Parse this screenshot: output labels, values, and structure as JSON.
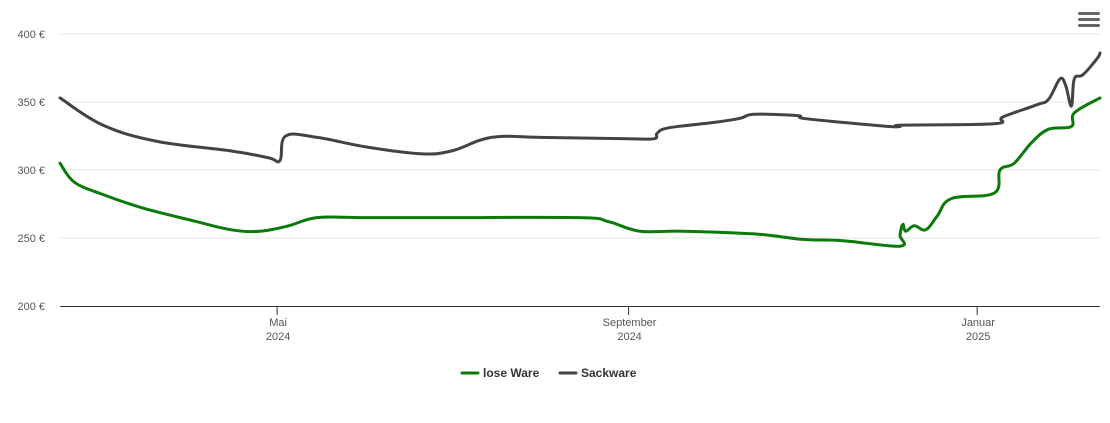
{
  "chart_data": {
    "type": "line",
    "title": "",
    "xlabel": "",
    "ylabel": "",
    "ylim": [
      200,
      400
    ],
    "y_ticks": [
      "200 €",
      "250 €",
      "300 €",
      "350 €",
      "400 €"
    ],
    "y_tick_values": [
      200,
      250,
      300,
      350,
      400
    ],
    "x_range": [
      "2024-02-15",
      "2025-02-13"
    ],
    "x_ticks": [
      {
        "date": "2024-05-01",
        "month": "Mai",
        "year": "2024"
      },
      {
        "date": "2024-09-01",
        "month": "September",
        "year": "2024"
      },
      {
        "date": "2025-01-01",
        "month": "Januar",
        "year": "2025"
      }
    ],
    "grid": "horizontal",
    "legend_position": "bottom-center",
    "series": [
      {
        "name": "lose Ware",
        "color": "#0a7a0a",
        "points": [
          [
            "2024-02-15",
            305
          ],
          [
            "2024-02-20",
            291
          ],
          [
            "2024-03-01",
            282
          ],
          [
            "2024-03-15",
            272
          ],
          [
            "2024-04-01",
            263
          ],
          [
            "2024-04-15",
            256
          ],
          [
            "2024-04-25",
            255
          ],
          [
            "2024-05-05",
            259
          ],
          [
            "2024-05-15",
            265
          ],
          [
            "2024-06-01",
            265
          ],
          [
            "2024-07-01",
            265
          ],
          [
            "2024-08-15",
            265
          ],
          [
            "2024-08-25",
            262
          ],
          [
            "2024-09-05",
            255
          ],
          [
            "2024-09-20",
            255
          ],
          [
            "2024-10-15",
            253
          ],
          [
            "2024-11-01",
            249
          ],
          [
            "2024-11-15",
            248
          ],
          [
            "2024-12-05",
            244
          ],
          [
            "2024-12-05",
            252
          ],
          [
            "2024-12-06",
            260
          ],
          [
            "2024-12-07",
            255
          ],
          [
            "2024-12-10",
            259
          ],
          [
            "2024-12-14",
            256
          ],
          [
            "2024-12-18",
            266
          ],
          [
            "2024-12-23",
            279
          ],
          [
            "2025-01-07",
            283
          ],
          [
            "2025-01-09",
            300
          ],
          [
            "2025-01-14",
            305
          ],
          [
            "2025-01-20",
            320
          ],
          [
            "2025-01-26",
            330
          ],
          [
            "2025-02-03",
            332
          ],
          [
            "2025-02-04",
            342
          ],
          [
            "2025-02-13",
            353
          ]
        ]
      },
      {
        "name": "Sackware",
        "color": "#434343",
        "points": [
          [
            "2024-02-15",
            353
          ],
          [
            "2024-03-01",
            333
          ],
          [
            "2024-03-20",
            321
          ],
          [
            "2024-04-15",
            314
          ],
          [
            "2024-04-28",
            309
          ],
          [
            "2024-05-02",
            307
          ],
          [
            "2024-05-04",
            325
          ],
          [
            "2024-05-15",
            324
          ],
          [
            "2024-06-01",
            317
          ],
          [
            "2024-06-20",
            312
          ],
          [
            "2024-07-01",
            314
          ],
          [
            "2024-07-15",
            324
          ],
          [
            "2024-08-01",
            324
          ],
          [
            "2024-09-01",
            323
          ],
          [
            "2024-09-10",
            323
          ],
          [
            "2024-09-11",
            327
          ],
          [
            "2024-09-15",
            331
          ],
          [
            "2024-10-01",
            335
          ],
          [
            "2024-10-10",
            338
          ],
          [
            "2024-10-15",
            341
          ],
          [
            "2024-10-30",
            340
          ],
          [
            "2024-11-01",
            338
          ],
          [
            "2024-11-15",
            335
          ],
          [
            "2024-12-01",
            332
          ],
          [
            "2024-12-05",
            332
          ],
          [
            "2024-12-06",
            333
          ],
          [
            "2025-01-07",
            334
          ],
          [
            "2025-01-10",
            339
          ],
          [
            "2025-01-22",
            348
          ],
          [
            "2025-01-26",
            352
          ],
          [
            "2025-01-30",
            367
          ],
          [
            "2025-02-01",
            362
          ],
          [
            "2025-02-03",
            347
          ],
          [
            "2025-02-04",
            367
          ],
          [
            "2025-02-07",
            370
          ],
          [
            "2025-02-12",
            382
          ],
          [
            "2025-02-13",
            386
          ]
        ]
      }
    ]
  },
  "menu": {
    "icon": "hamburger-menu-icon"
  }
}
